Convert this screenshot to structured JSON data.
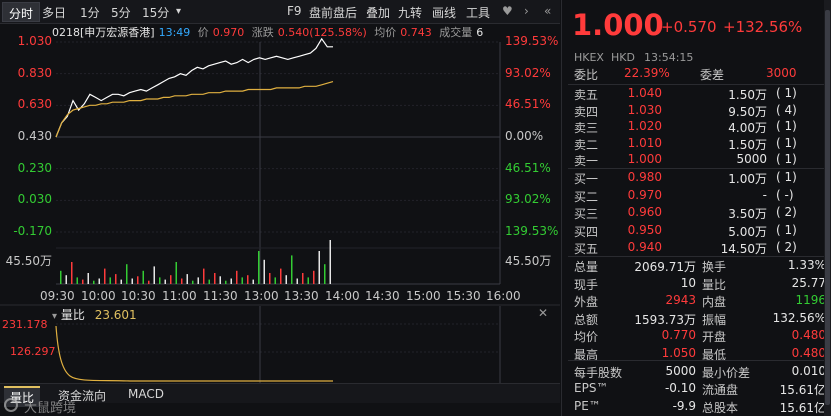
{
  "toolbar": {
    "tabs": [
      "分时",
      "多日",
      "1分",
      "5分",
      "15分"
    ],
    "dropdown": "▾",
    "right": [
      "F9",
      "盘前盘后",
      "叠加",
      "九转",
      "画线",
      "工具"
    ],
    "fav": "♥",
    "more": "›",
    "expand": "«"
  },
  "info": {
    "code": "0218[申万宏源香港]",
    "time": "13:49",
    "price_label": "价",
    "price": "0.970",
    "change_label": "涨跌",
    "change": "0.540(125.58%)",
    "avg_label": "均价",
    "avg": "0.743",
    "vol_label": "成交量",
    "vol": "6"
  },
  "chart_data": {
    "type": "line",
    "y_left_ticks": [
      "1.030",
      "0.830",
      "0.630",
      "0.430",
      "0.230",
      "0.030",
      "-0.170"
    ],
    "y_right_ticks": [
      "139.53%",
      "93.02%",
      "46.51%",
      "0.00%",
      "46.51%",
      "93.02%",
      "139.53%"
    ],
    "x_ticks": [
      "09:30",
      "10:00",
      "10:30",
      "11:00",
      "11:30",
      "13:00",
      "13:30",
      "14:00",
      "14:30",
      "15:00",
      "15:30",
      "16:00"
    ],
    "volume_axis_label_left": "45.50万",
    "volume_axis_label_right": "45.50万",
    "ylim": [
      -0.17,
      1.03
    ],
    "base_price": 0.43,
    "price_series": [
      0.43,
      0.52,
      0.56,
      0.66,
      0.6,
      0.64,
      0.7,
      0.68,
      0.66,
      0.68,
      0.7,
      0.7,
      0.69,
      0.71,
      0.72,
      0.73,
      0.72,
      0.74,
      0.76,
      0.78,
      0.8,
      0.81,
      0.83,
      0.82,
      0.85,
      0.87,
      0.86,
      0.88,
      0.89,
      0.9,
      0.91,
      0.89,
      0.9,
      0.92,
      0.9,
      0.92,
      0.93,
      0.92,
      0.93,
      0.94,
      0.93,
      0.92,
      0.93,
      0.94,
      0.95,
      0.96,
      0.99,
      1.05,
      1.0,
      1.0
    ],
    "avg_series": [
      0.43,
      0.52,
      0.57,
      0.6,
      0.61,
      0.62,
      0.63,
      0.63,
      0.64,
      0.64,
      0.65,
      0.65,
      0.65,
      0.66,
      0.66,
      0.66,
      0.67,
      0.67,
      0.67,
      0.68,
      0.68,
      0.69,
      0.69,
      0.69,
      0.7,
      0.7,
      0.7,
      0.71,
      0.71,
      0.71,
      0.72,
      0.72,
      0.72,
      0.72,
      0.73,
      0.73,
      0.73,
      0.73,
      0.73,
      0.74,
      0.74,
      0.74,
      0.74,
      0.74,
      0.75,
      0.75,
      0.75,
      0.76,
      0.77,
      0.78
    ]
  },
  "lower": {
    "label": "量比",
    "value": "23.601",
    "y_ticks": [
      "231.178",
      "126.297"
    ],
    "tabs": [
      "量比",
      "资金流向",
      "MACD"
    ]
  },
  "watermark": "大鼠跨境",
  "quote": {
    "price": "1.000",
    "change": "+0.570",
    "pct": "+132.56%",
    "market": "HKEX",
    "currency": "HKD",
    "time": "13:54:15",
    "weibi_label": "委比",
    "weibi": "22.39%",
    "weicha_label": "委差",
    "weicha": "3000",
    "asks": [
      {
        "label": "卖五",
        "price": "1.040",
        "vol": "1.50万",
        "cnt": "( 1)"
      },
      {
        "label": "卖四",
        "price": "1.030",
        "vol": "9.50万",
        "cnt": "( 4)"
      },
      {
        "label": "卖三",
        "price": "1.020",
        "vol": "4.00万",
        "cnt": "( 1)"
      },
      {
        "label": "卖二",
        "price": "1.010",
        "vol": "1.50万",
        "cnt": "( 1)"
      },
      {
        "label": "卖一",
        "price": "1.000",
        "vol": "5000",
        "cnt": "( 1)"
      }
    ],
    "bids": [
      {
        "label": "买一",
        "price": "0.980",
        "vol": "1.00万",
        "cnt": "( 1)"
      },
      {
        "label": "买二",
        "price": "0.970",
        "vol": "-",
        "cnt": "( -)"
      },
      {
        "label": "买三",
        "price": "0.960",
        "vol": "3.50万",
        "cnt": "( 2)"
      },
      {
        "label": "买四",
        "price": "0.950",
        "vol": "5.00万",
        "cnt": "( 1)"
      },
      {
        "label": "买五",
        "price": "0.940",
        "vol": "14.50万",
        "cnt": "( 2)"
      }
    ],
    "stats": [
      {
        "l1": "总量",
        "v1": "2069.71万",
        "c1": "white",
        "l2": "换手",
        "v2": "1.33%",
        "c2": "white"
      },
      {
        "l1": "现手",
        "v1": "10",
        "c1": "white",
        "l2": "量比",
        "v2": "25.77",
        "c2": "white"
      },
      {
        "l1": "外盘",
        "v1": "2943",
        "c1": "red",
        "l2": "内盘",
        "v2": "1196",
        "c2": "green"
      },
      {
        "l1": "总额",
        "v1": "1593.73万",
        "c1": "white",
        "l2": "振幅",
        "v2": "132.56%",
        "c2": "white"
      },
      {
        "l1": "均价",
        "v1": "0.770",
        "c1": "red",
        "l2": "开盘",
        "v2": "0.480",
        "c2": "red"
      },
      {
        "l1": "最高",
        "v1": "1.050",
        "c1": "red",
        "l2": "最低",
        "v2": "0.480",
        "c2": "red"
      },
      {
        "l1": "每手股数",
        "v1": "5000",
        "c1": "white",
        "l2": "最小价差",
        "v2": "0.010",
        "c2": "white"
      },
      {
        "l1": "EPS™",
        "v1": "-0.10",
        "c1": "white",
        "l2": "流通盘",
        "v2": "15.61亿",
        "c2": "white"
      },
      {
        "l1": "PE™",
        "v1": "-9.9",
        "c1": "white",
        "l2": "总股本",
        "v2": "15.61亿",
        "c2": "white"
      }
    ]
  },
  "colors": {
    "up": "#ff3b3b",
    "down": "#33cc33",
    "price_line": "#ffffff",
    "avg_line": "#e0b040",
    "grid": "#2a2b30"
  }
}
